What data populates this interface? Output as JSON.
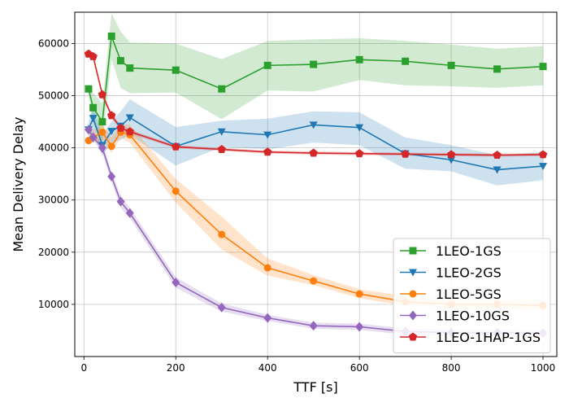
{
  "chart_data": {
    "type": "line",
    "xlabel": "TTF [s]",
    "ylabel": "Mean Delivery Delay",
    "xlim": [
      -20,
      1030
    ],
    "ylim": [
      0,
      66000
    ],
    "xticks": [
      0,
      200,
      400,
      600,
      800,
      1000
    ],
    "yticks": [
      10000,
      20000,
      30000,
      40000,
      50000,
      60000
    ],
    "grid": true,
    "legend_position": "lower-right",
    "x": [
      10,
      20,
      40,
      60,
      80,
      100,
      200,
      300,
      400,
      500,
      600,
      700,
      800,
      900,
      1000
    ],
    "series": [
      {
        "name": "1LEO-1GS",
        "color": "#2ca02c",
        "marker": "square",
        "values": [
          51300,
          47700,
          45000,
          61400,
          56700,
          55300,
          54900,
          51300,
          55800,
          56000,
          56900,
          56600,
          55800,
          55100,
          55600
        ],
        "lower": [
          50300,
          44500,
          41000,
          57000,
          51500,
          50500,
          50600,
          45500,
          51000,
          50800,
          53000,
          52000,
          51800,
          51500,
          52000
        ],
        "upper": [
          52300,
          50500,
          48500,
          65800,
          62300,
          60200,
          60000,
          57000,
          60500,
          60800,
          61000,
          60500,
          59800,
          59000,
          59500
        ]
      },
      {
        "name": "1LEO-2GS",
        "color": "#1f77b4",
        "marker": "triangle-down",
        "values": [
          43500,
          45700,
          40500,
          43200,
          44200,
          45800,
          40300,
          43100,
          42500,
          44400,
          43900,
          38900,
          37700,
          35800,
          36500
        ],
        "lower": [
          42000,
          43000,
          38500,
          41000,
          41500,
          42500,
          36600,
          40200,
          39700,
          41000,
          40500,
          36000,
          35500,
          32800,
          33800
        ],
        "upper": [
          45000,
          48000,
          42500,
          45000,
          47000,
          49300,
          44000,
          45200,
          45600,
          47000,
          46800,
          42000,
          40500,
          38600,
          39200
        ]
      },
      {
        "name": "1LEO-5GS",
        "color": "#ff7f0e",
        "marker": "circle",
        "values": [
          41400,
          42000,
          43000,
          40300,
          43000,
          42500,
          31700,
          23400,
          17000,
          14500,
          12000,
          10500,
          10000,
          10000,
          9800
        ],
        "lower": [
          41000,
          41000,
          41500,
          39000,
          42000,
          41000,
          29500,
          20500,
          15500,
          13700,
          11200,
          9700,
          9300,
          9300,
          9000
        ],
        "upper": [
          42000,
          43500,
          44500,
          42000,
          44500,
          44500,
          34000,
          26800,
          18800,
          15600,
          12900,
          11600,
          11000,
          11000,
          10900
        ]
      },
      {
        "name": "1LEO-10GS",
        "color": "#9467bd",
        "marker": "diamond",
        "values": [
          43500,
          42000,
          40000,
          34500,
          29700,
          27500,
          14200,
          9400,
          7400,
          5900,
          5700,
          4800,
          4600,
          4600,
          4500
        ],
        "lower": [
          43000,
          41500,
          39000,
          33500,
          28500,
          26500,
          13200,
          8600,
          6800,
          5300,
          5100,
          4200,
          4000,
          4000,
          3900
        ],
        "upper": [
          44000,
          43000,
          41000,
          35500,
          30800,
          28500,
          15200,
          10200,
          8000,
          6500,
          6300,
          5400,
          5200,
          5200,
          5100
        ]
      },
      {
        "name": "1LEO-1HAP-1GS",
        "color": "#d62728",
        "marker": "pentagon",
        "values": [
          58000,
          57500,
          50200,
          46200,
          43800,
          43100,
          40200,
          39700,
          39200,
          39000,
          38900,
          38800,
          38700,
          38600,
          38700
        ],
        "lower": [
          57700,
          57000,
          49700,
          45700,
          43300,
          42700,
          39900,
          39400,
          38900,
          38700,
          38600,
          38500,
          38400,
          38300,
          38400
        ],
        "upper": [
          58300,
          58000,
          50700,
          46700,
          44300,
          43500,
          40500,
          40000,
          39500,
          39300,
          39200,
          39100,
          39000,
          38900,
          39000
        ]
      }
    ]
  }
}
